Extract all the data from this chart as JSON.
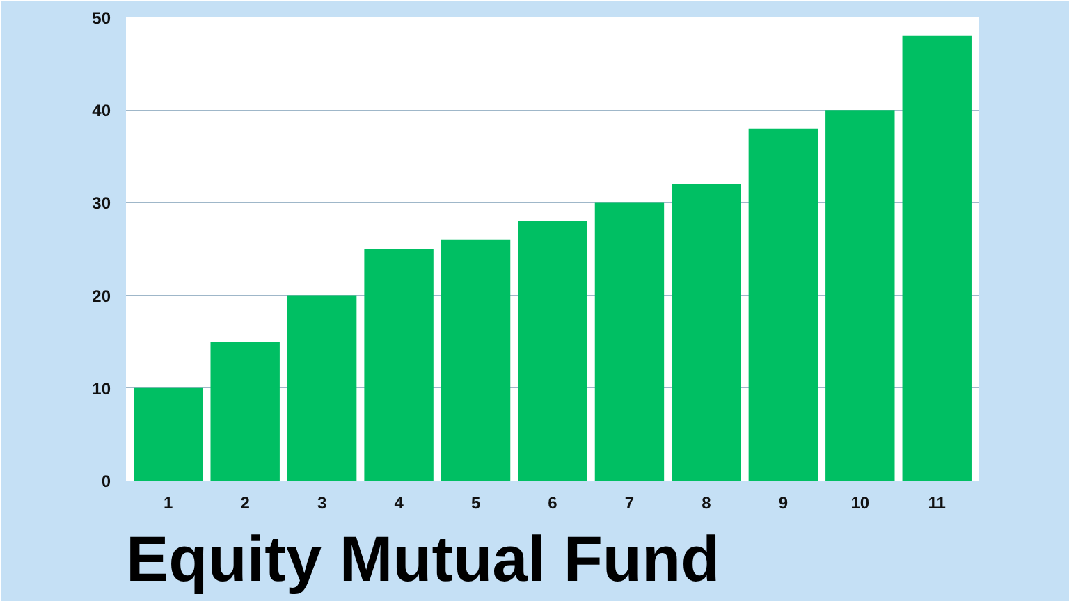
{
  "chart_data": {
    "type": "bar",
    "title": "Equity Mutual Fund",
    "categories": [
      "1",
      "2",
      "3",
      "4",
      "5",
      "6",
      "7",
      "8",
      "9",
      "10",
      "11"
    ],
    "values": [
      10,
      15,
      20,
      25,
      26,
      28,
      30,
      32,
      38,
      40,
      48
    ],
    "color": "#00bf63",
    "ylim": [
      0,
      50
    ],
    "yticks": [
      0,
      10,
      20,
      30,
      40,
      50
    ],
    "grid": "y"
  }
}
